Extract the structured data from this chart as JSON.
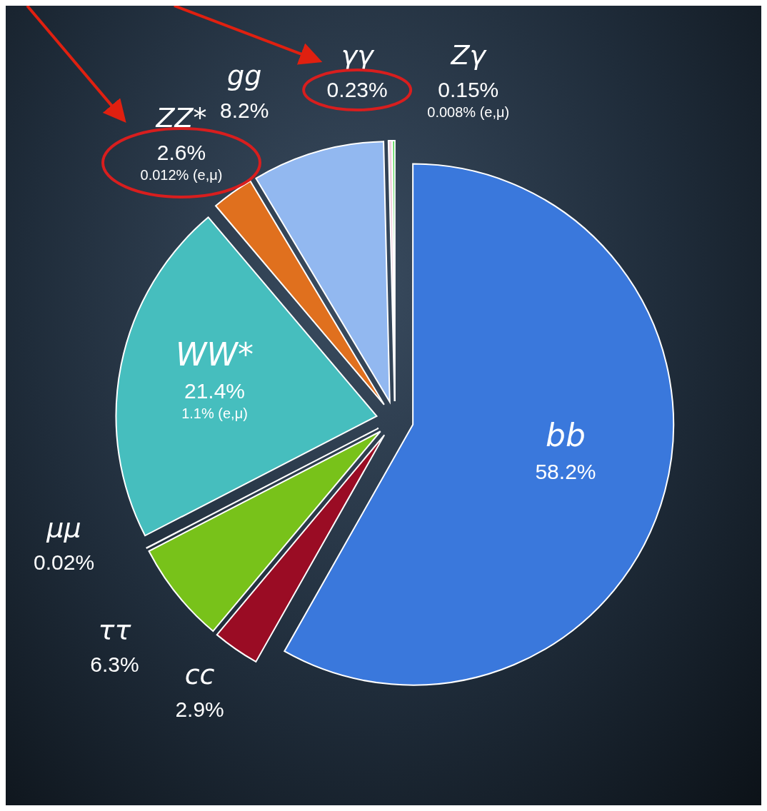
{
  "chart_data": {
    "type": "pie",
    "categories": [
      "bb",
      "cc",
      "ττ",
      "μμ",
      "WW*",
      "ZZ*",
      "gg",
      "γγ",
      "Zγ"
    ],
    "values": [
      58.2,
      2.9,
      6.3,
      0.02,
      21.4,
      2.6,
      8.2,
      0.23,
      0.15
    ],
    "colors": [
      "#3a78dc",
      "#9a0c24",
      "#78c21a",
      "#4cb8e8",
      "#46bebe",
      "#e0701e",
      "#92b8f0",
      "#f2d0dc",
      "#36d036"
    ],
    "value_labels": [
      "58.2%",
      "2.9%",
      "6.3%",
      "0.02%",
      "21.4%",
      "2.6%",
      "8.2%",
      "0.23%",
      "0.15%"
    ],
    "annotations": [
      {
        "text": "1.1% (e,μ)",
        "x": "WW*"
      },
      {
        "text": "0.012% (e,μ)",
        "x": "ZZ*"
      },
      {
        "text": "0.008% (e,μ)",
        "x": "Zγ"
      }
    ],
    "legend": false
  }
}
